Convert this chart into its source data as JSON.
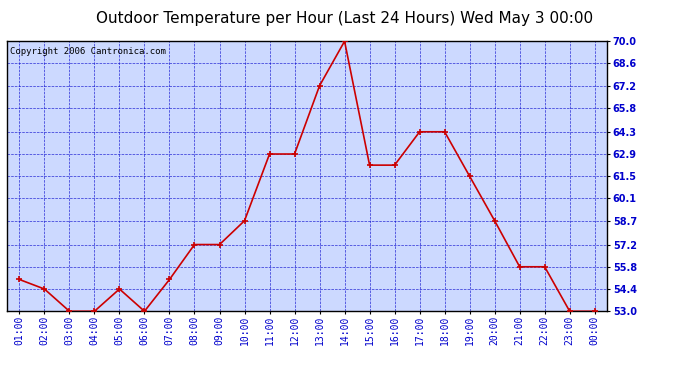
{
  "title": "Outdoor Temperature per Hour (Last 24 Hours) Wed May 3 00:00",
  "copyright": "Copyright 2006 Cantronica.com",
  "hours": [
    "01:00",
    "02:00",
    "03:00",
    "04:00",
    "05:00",
    "06:00",
    "07:00",
    "08:00",
    "09:00",
    "10:00",
    "11:00",
    "12:00",
    "13:00",
    "14:00",
    "15:00",
    "16:00",
    "17:00",
    "18:00",
    "19:00",
    "20:00",
    "21:00",
    "22:00",
    "23:00",
    "00:00"
  ],
  "temps": [
    55.0,
    54.4,
    53.0,
    53.0,
    54.4,
    53.0,
    55.0,
    57.2,
    57.2,
    58.7,
    62.9,
    62.9,
    67.2,
    70.0,
    62.2,
    62.2,
    64.3,
    64.3,
    61.5,
    58.7,
    55.8,
    55.8,
    53.0,
    53.0
  ],
  "line_color": "#cc0000",
  "marker_color": "#cc0000",
  "bg_color": "#ccd9ff",
  "grid_color": "#0000cc",
  "axis_label_color": "#0000cc",
  "border_color": "#000000",
  "title_color": "#000000",
  "ylim_min": 53.0,
  "ylim_max": 70.0,
  "ytick_values": [
    53.0,
    54.4,
    55.8,
    57.2,
    58.7,
    60.1,
    61.5,
    62.9,
    64.3,
    65.8,
    67.2,
    68.6,
    70.0
  ],
  "title_fontsize": 11,
  "copyright_fontsize": 6.5,
  "tick_fontsize": 7,
  "fig_width": 6.9,
  "fig_height": 3.75
}
